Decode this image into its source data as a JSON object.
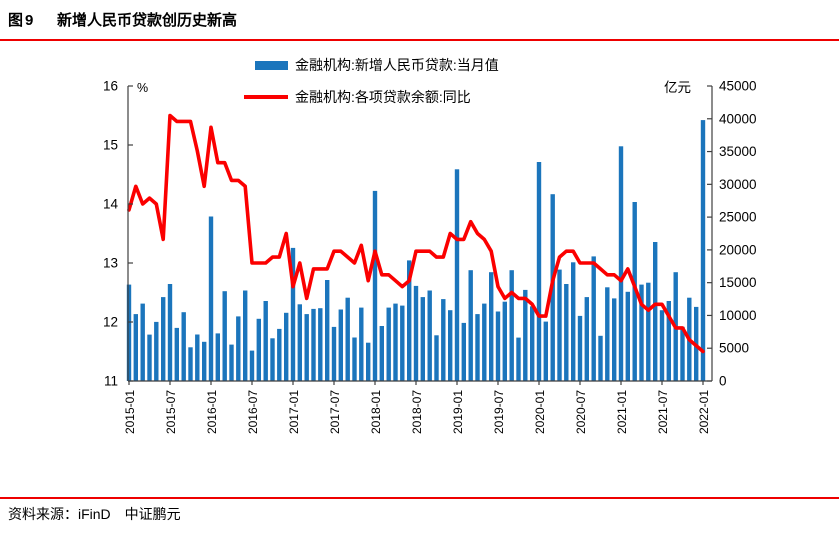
{
  "figure": {
    "tag": "图9",
    "title": "新增人民币贷款创历史新高",
    "source": "资料来源：iFinD　中证鹏元"
  },
  "colors": {
    "bar": "#1B75BC",
    "line": "#FB0000",
    "rule": "#EE0000",
    "axis": "#3F3F3F",
    "text": "#000000"
  },
  "legend": {
    "items": [
      {
        "label": "金融机构:新增人民币贷款:当月值",
        "type": "bar"
      },
      {
        "label": "金融机构:各项贷款余额:同比",
        "type": "line"
      }
    ]
  },
  "chart_data": {
    "type": "bar+line combo",
    "x_start": "2015-01",
    "x_end": "2022-01",
    "x_tick_labels": [
      "2015-01",
      "2015-07",
      "2016-01",
      "2016-07",
      "2017-01",
      "2017-07",
      "2018-01",
      "2018-07",
      "2019-01",
      "2019-07",
      "2020-01",
      "2020-07",
      "2021-01",
      "2021-07",
      "2022-01"
    ],
    "left_axis": {
      "unit": "%",
      "min": 11,
      "max": 16,
      "ticks": [
        16,
        15,
        14,
        13,
        12,
        11
      ]
    },
    "right_axis": {
      "unit": "亿元",
      "min": 0,
      "max": 45000,
      "ticks": [
        45000,
        40000,
        35000,
        30000,
        25000,
        20000,
        15000,
        10000,
        5000,
        0
      ]
    },
    "grid": false,
    "legend_position": "top",
    "series": [
      {
        "name": "金融机构:新增人民币贷款:当月值",
        "type": "bar",
        "axis": "right",
        "values": [
          14700,
          10200,
          11800,
          7079,
          9008,
          12791,
          14800,
          8096,
          10500,
          5136,
          7089,
          5978,
          25100,
          7266,
          13700,
          5556,
          9855,
          13800,
          4636,
          9487,
          12200,
          6513,
          7946,
          10400,
          20300,
          11700,
          10200,
          11000,
          11100,
          15400,
          8255,
          10900,
          12700,
          6632,
          11200,
          5844,
          29000,
          8393,
          11200,
          11800,
          11500,
          18400,
          14500,
          12800,
          13800,
          6970,
          12500,
          10800,
          32300,
          8858,
          16900,
          10200,
          11800,
          16600,
          10600,
          12100,
          16900,
          6613,
          13900,
          11400,
          33400,
          9057,
          28500,
          17000,
          14800,
          18100,
          9927,
          12800,
          19000,
          6898,
          14300,
          12600,
          35800,
          13600,
          27300,
          14700,
          15000,
          21200,
          10800,
          12200,
          16600,
          8262,
          12700,
          11300,
          39800
        ]
      },
      {
        "name": "金融机构:各项贷款余额:同比",
        "type": "line",
        "axis": "left",
        "values": [
          13.9,
          14.3,
          14.0,
          14.1,
          14.0,
          13.4,
          15.5,
          15.4,
          15.4,
          15.4,
          14.9,
          14.3,
          15.3,
          14.7,
          14.7,
          14.4,
          14.4,
          14.3,
          13.0,
          13.0,
          13.0,
          13.1,
          13.1,
          13.5,
          12.6,
          13.0,
          12.4,
          12.9,
          12.9,
          12.9,
          13.2,
          13.2,
          13.1,
          13.0,
          13.3,
          12.7,
          13.2,
          12.8,
          12.8,
          12.7,
          12.6,
          12.7,
          13.2,
          13.2,
          13.2,
          13.1,
          13.1,
          13.5,
          13.4,
          13.4,
          13.7,
          13.5,
          13.4,
          13.2,
          12.6,
          12.4,
          12.5,
          12.4,
          12.4,
          12.3,
          12.1,
          12.1,
          12.7,
          13.1,
          13.2,
          13.2,
          13.0,
          13.0,
          13.0,
          12.9,
          12.8,
          12.8,
          12.7,
          12.9,
          12.6,
          12.3,
          12.2,
          12.3,
          12.3,
          12.1,
          11.9,
          11.9,
          11.7,
          11.6,
          11.5
        ]
      }
    ]
  }
}
